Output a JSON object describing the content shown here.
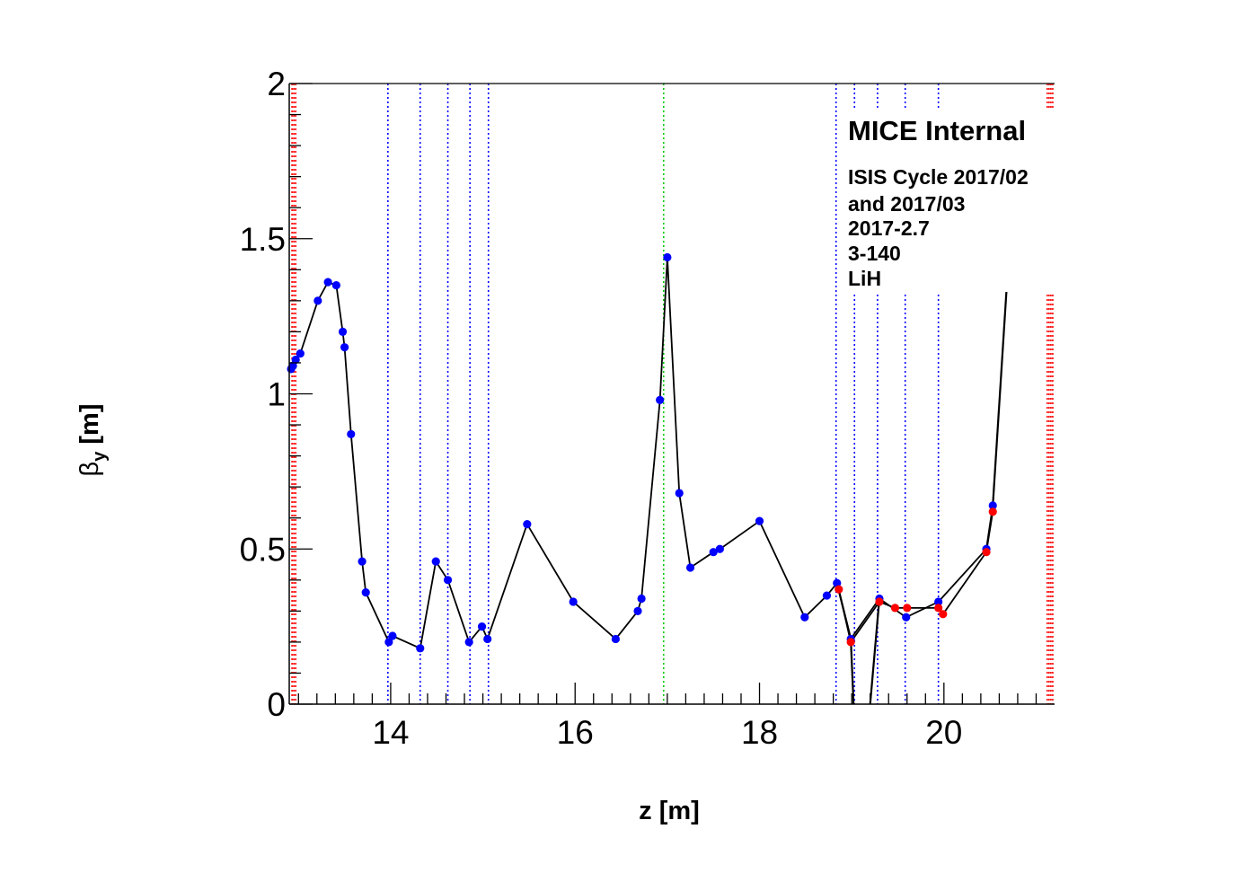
{
  "chart_data": {
    "type": "line",
    "xlabel": "z [m]",
    "ylabel_main": "β",
    "ylabel_sub": "y",
    "ylabel_unit": "[m]",
    "xlim": [
      12.9,
      21.2
    ],
    "ylim": [
      0,
      2
    ],
    "x_ticks": [
      14,
      16,
      18,
      20
    ],
    "y_ticks": [
      0,
      0.5,
      1,
      1.5,
      2
    ],
    "y_tick_labels": [
      "0",
      "0.5",
      "1",
      "1.5",
      "2"
    ],
    "grid": false,
    "annotation": {
      "title": "MICE Internal",
      "lines": [
        "ISIS Cycle 2017/02",
        "and 2017/03",
        "2017-2.7",
        "3-140",
        "LiH"
      ]
    },
    "vertical_markers": {
      "blue_dotted": [
        13.97,
        14.32,
        14.62,
        14.86,
        15.06,
        18.83,
        19.03,
        19.28,
        19.58,
        19.94
      ],
      "green_dotted": [
        16.96
      ],
      "red_dotted_left": [
        12.93,
        12.95,
        12.97
      ],
      "red_dotted_right": [
        21.12,
        21.14,
        21.16,
        21.18
      ]
    },
    "series": [
      {
        "color": "#0000ff",
        "points": [
          [
            12.92,
            1.08
          ],
          [
            12.94,
            1.09
          ],
          [
            12.97,
            1.11
          ],
          [
            13.02,
            1.13
          ],
          [
            13.21,
            1.3
          ],
          [
            13.32,
            1.36
          ],
          [
            13.41,
            1.35
          ],
          [
            13.48,
            1.2
          ],
          [
            13.5,
            1.15
          ],
          [
            13.57,
            0.87
          ],
          [
            13.69,
            0.46
          ],
          [
            13.73,
            0.36
          ],
          [
            13.98,
            0.2
          ],
          [
            14.02,
            0.22
          ],
          [
            14.32,
            0.18
          ],
          [
            14.49,
            0.46
          ],
          [
            14.62,
            0.4
          ],
          [
            14.85,
            0.2
          ],
          [
            14.99,
            0.25
          ],
          [
            15.05,
            0.21
          ],
          [
            15.48,
            0.58
          ],
          [
            15.98,
            0.33
          ],
          [
            16.44,
            0.21
          ],
          [
            16.68,
            0.3
          ],
          [
            16.72,
            0.34
          ],
          [
            16.92,
            0.98
          ],
          [
            17.0,
            1.44
          ],
          [
            17.13,
            0.68
          ],
          [
            17.25,
            0.44
          ],
          [
            17.5,
            0.49
          ],
          [
            17.57,
            0.5
          ],
          [
            18.0,
            0.59
          ],
          [
            18.49,
            0.28
          ],
          [
            18.73,
            0.35
          ],
          [
            18.84,
            0.39
          ],
          [
            18.99,
            0.21
          ],
          [
            19.3,
            0.34
          ],
          [
            19.59,
            0.28
          ],
          [
            19.94,
            0.33
          ],
          [
            20.46,
            0.5
          ],
          [
            20.53,
            0.64
          ]
        ]
      },
      {
        "color": "#ff0000",
        "points": [
          [
            18.86,
            0.37
          ],
          [
            18.99,
            0.2
          ],
          [
            19.3,
            0.33
          ],
          [
            19.47,
            0.31
          ],
          [
            19.6,
            0.31
          ],
          [
            19.94,
            0.31
          ],
          [
            19.99,
            0.29
          ],
          [
            20.46,
            0.49
          ],
          [
            20.53,
            0.62
          ]
        ]
      }
    ]
  }
}
